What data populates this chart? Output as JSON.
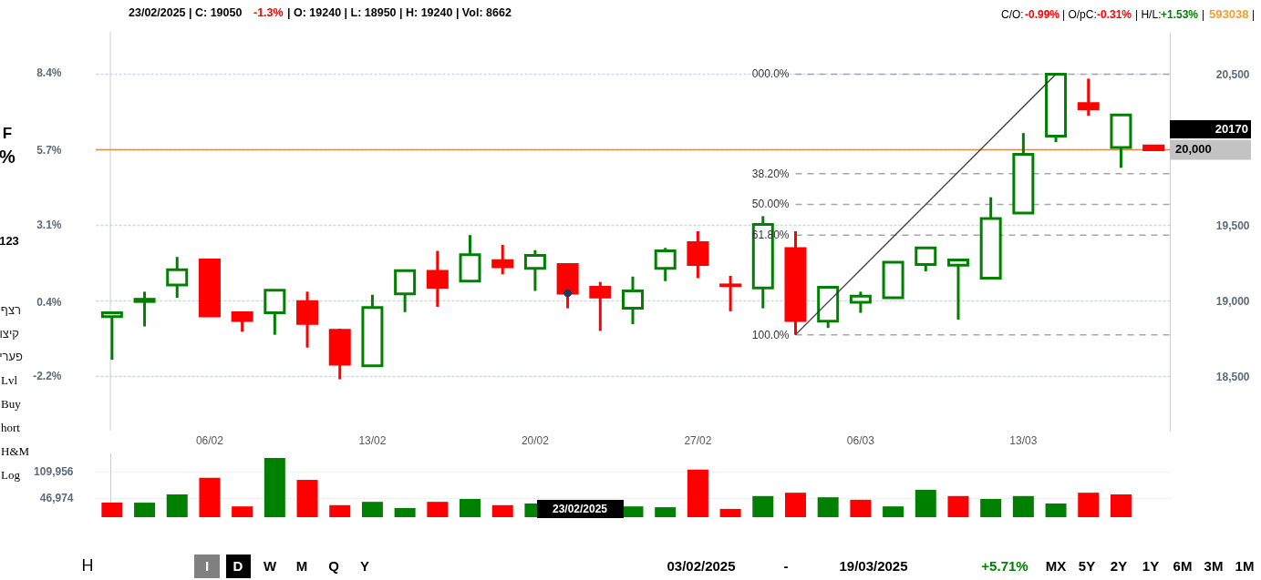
{
  "chart_data": [
    {
      "type": "candlestick",
      "categories": [
        null,
        null,
        null,
        "06/02",
        null,
        null,
        null,
        null,
        "13/02",
        null,
        null,
        null,
        null,
        "20/02",
        null,
        null,
        null,
        null,
        "27/02",
        null,
        null,
        null,
        null,
        "06/03",
        null,
        null,
        null,
        null,
        "13/03",
        null,
        null,
        null,
        null
      ],
      "ohlc": [
        [
          18895,
          18920,
          18610,
          18920
        ],
        [
          18995,
          19060,
          18830,
          19010
        ],
        [
          19105,
          19290,
          19020,
          19205
        ],
        [
          19270,
          19270,
          18900,
          18900
        ],
        [
          18920,
          18920,
          18795,
          18870
        ],
        [
          18920,
          19070,
          18775,
          19070
        ],
        [
          18995,
          19060,
          18690,
          18850
        ],
        [
          18805,
          18815,
          18480,
          18580
        ],
        [
          18570,
          19040,
          18570,
          18955
        ],
        [
          19045,
          19200,
          18925,
          19200
        ],
        [
          19195,
          19330,
          18960,
          19090
        ],
        [
          19130,
          19435,
          19130,
          19305
        ],
        [
          19265,
          19370,
          19175,
          19225
        ],
        [
          19215,
          19335,
          19065,
          19300
        ],
        [
          19240,
          19240,
          18950,
          19050
        ],
        [
          19090,
          19125,
          18800,
          19025
        ],
        [
          18950,
          19160,
          18845,
          19065
        ],
        [
          19215,
          19350,
          19130,
          19330
        ],
        [
          19385,
          19460,
          19150,
          19240
        ],
        [
          19105,
          19165,
          18930,
          19100
        ],
        [
          19085,
          19560,
          18950,
          19505
        ],
        [
          19345,
          19460,
          18775,
          18870
        ],
        [
          18865,
          19090,
          18820,
          19090
        ],
        [
          18990,
          19060,
          18920,
          19030
        ],
        [
          19020,
          19260,
          19020,
          19255
        ],
        [
          19240,
          19350,
          19195,
          19350
        ],
        [
          19235,
          19270,
          18875,
          19270
        ],
        [
          19150,
          19685,
          19150,
          19545
        ],
        [
          19580,
          20110,
          19580,
          19970
        ],
        [
          20090,
          20500,
          20050,
          20500
        ],
        [
          20305,
          20470,
          20225,
          20270
        ],
        [
          20015,
          20230,
          19880,
          20230
        ],
        [
          20025,
          20025,
          20000,
          20000
        ]
      ],
      "colors": [
        "#008000",
        "#008000",
        "#008000",
        "#ff0000",
        "#ff0000",
        "#008000",
        "#ff0000",
        "#ff0000",
        "#008000",
        "#008000",
        "#ff0000",
        "#008000",
        "#ff0000",
        "#008000",
        "#ff0000",
        "#ff0000",
        "#008000",
        "#008000",
        "#ff0000",
        "#ff0000",
        "#008000",
        "#ff0000",
        "#008000",
        "#008000",
        "#008000",
        "#008000",
        "#008000",
        "#008000",
        "#008000",
        "#008000",
        "#ff0000",
        "#008000",
        "#ff0000"
      ],
      "series": [
        {
          "type": "line",
          "color": "#333333",
          "line_style": "solid",
          "values": [
            null,
            null,
            null,
            null,
            null,
            null,
            null,
            null,
            null,
            null,
            null,
            null,
            null,
            null,
            null,
            null,
            null,
            null,
            null,
            null,
            null,
            18775,
            null,
            null,
            null,
            null,
            null,
            null,
            null,
            20500,
            null,
            null,
            null
          ]
        },
        {
          "type": "scatter",
          "color": "#1c3d5a",
          "marker": "circle",
          "values": [
            null,
            null,
            null,
            null,
            null,
            null,
            null,
            null,
            null,
            null,
            null,
            null,
            null,
            null,
            19050,
            null,
            null,
            null,
            null,
            null,
            null,
            null,
            null,
            null,
            null,
            null,
            null,
            null,
            null,
            null,
            null,
            null,
            null
          ]
        }
      ],
      "ylim": [
        18140,
        20780
      ],
      "yticks": [
        {
          "value": 18500,
          "label": "18,500"
        },
        {
          "value": 19000,
          "label": "19,000"
        },
        {
          "value": 19500,
          "label": "19,500"
        },
        {
          "value": 20000,
          "label": null
        },
        {
          "value": 20500,
          "label": "20,500"
        }
      ],
      "y2lim": [
        -4.12,
        9.83
      ],
      "y2ticks": [
        {
          "value": -2.2,
          "label": "-2.2%"
        },
        {
          "value": 0.4,
          "label": "0.4%"
        },
        {
          "value": 3.1,
          "label": "3.1%"
        },
        {
          "value": 5.7,
          "label": "5.7%"
        },
        {
          "value": 8.4,
          "label": "8.4%"
        }
      ],
      "grid": "y",
      "ref_lines": [
        {
          "axis": "y",
          "value": 20000,
          "label": "20,000",
          "color": "#d4904c"
        },
        {
          "axis": "y",
          "value": 20500,
          "color": "#a6a6a6",
          "line_style": "dashed"
        },
        {
          "axis": "y",
          "value": 19841,
          "color": "#a6a6a6",
          "line_style": "dashed"
        },
        {
          "axis": "y",
          "value": 19638,
          "color": "#a6a6a6",
          "line_style": "dashed"
        },
        {
          "axis": "y",
          "value": 19434,
          "color": "#a6a6a6",
          "line_style": "dashed"
        },
        {
          "axis": "y",
          "value": 18775,
          "color": "#a6a6a6",
          "line_style": "dashed"
        }
      ],
      "annotations": [
        "23/02/2025",
        "| C: 19050",
        "-1.3%",
        "| O: 19240 | L: 18950 | H: 19240 | Vol: 8662",
        "C/O:",
        "-0.99%",
        "| O/pC:",
        "-0.31%",
        "| H/L:",
        "+1.53%",
        "|",
        "593038",
        "|",
        "F",
        "%",
        "123",
        "רצף",
        "קיצו",
        "פערי",
        "Lvl",
        "Buy",
        "hort",
        "H&M",
        "Log",
        "H",
        "I",
        "D",
        "W",
        "M",
        "Q",
        "Y",
        "03/02/2025",
        "-",
        "19/03/2025",
        "+5.71%",
        "MX",
        "5Y",
        "2Y",
        "1Y",
        "6M",
        "3M",
        "1M",
        "23/02/2025",
        "20170",
        "000.0%",
        "38.20%",
        "50.00%",
        "61.80%",
        "100.0%"
      ]
    },
    {
      "type": "bar",
      "categories": [
        null,
        null,
        null,
        null,
        null,
        null,
        null,
        null,
        null,
        null,
        null,
        null,
        null,
        null,
        null,
        null,
        null,
        null,
        null,
        null,
        null,
        null,
        null,
        null,
        null,
        null,
        null,
        null,
        null,
        null,
        null,
        null,
        null
      ],
      "values": [
        35000,
        35000,
        55000,
        95000,
        26000,
        143000,
        90000,
        29000,
        37000,
        22000,
        37000,
        44000,
        29000,
        33000,
        null,
        null,
        26000,
        24000,
        115000,
        20000,
        51000,
        59000,
        48000,
        42000,
        26000,
        66000,
        51000,
        44000,
        51000,
        33000,
        59000,
        55000,
        null
      ],
      "colors": [
        "#ff0000",
        "#008000",
        "#008000",
        "#ff0000",
        "#ff0000",
        "#008000",
        "#ff0000",
        "#ff0000",
        "#008000",
        "#008000",
        "#ff0000",
        "#008000",
        "#ff0000",
        "#008000",
        "#ff0000",
        "#ff0000",
        "#008000",
        "#008000",
        "#ff0000",
        "#ff0000",
        "#008000",
        "#ff0000",
        "#008000",
        "#ff0000",
        "#008000",
        "#008000",
        "#ff0000",
        "#008000",
        "#008000",
        "#008000",
        "#ff0000",
        "#ff0000",
        "#ff0000"
      ],
      "ylim": [
        0,
        156000
      ],
      "yticks": [
        {
          "value": 46974,
          "label": "46,974"
        },
        {
          "value": 109956,
          "label": "109,956"
        }
      ],
      "grid": "y",
      "tick_labels": "y"
    }
  ]
}
